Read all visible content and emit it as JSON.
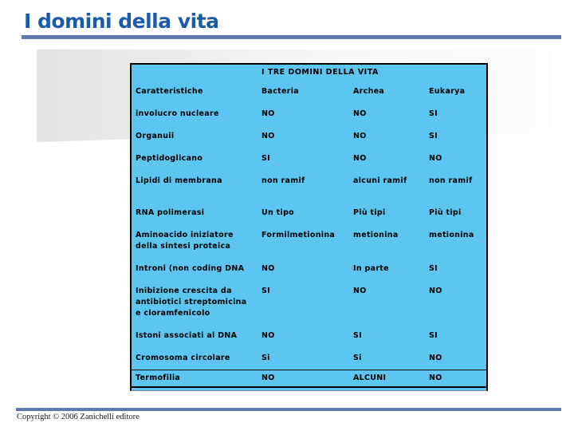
{
  "slide": {
    "title": "I domini della vita",
    "footer": "Copyright © 2006 Zanichelli editore"
  },
  "table": {
    "title": "I TRE DOMINI DELLA VITA",
    "columns": [
      "Caratteristiche",
      "Bacteria",
      "Archea",
      "Eukarya"
    ],
    "rows": [
      {
        "label": [
          "involucro nucleare"
        ],
        "values": [
          "NO",
          "NO",
          "SI"
        ]
      },
      {
        "label": [
          "Organuii"
        ],
        "values": [
          "NO",
          "NO",
          "SI"
        ]
      },
      {
        "label": [
          "Peptidoglicano"
        ],
        "values": [
          "SI",
          "NO",
          "NO"
        ]
      },
      {
        "label": [
          "Lipidi di membrana"
        ],
        "values": [
          "non ramif",
          "alcuni ramif",
          "non ramif"
        ]
      },
      {
        "label": [
          "RNA polimerasi"
        ],
        "values": [
          "Un tipo",
          "Più tipi",
          "Più tipi"
        ]
      },
      {
        "label": [
          "Aminoacido iniziatore",
          "della sintesi proteica"
        ],
        "values": [
          "Formilmetionina",
          "metionina",
          "metionina"
        ]
      },
      {
        "label": [
          "Introni (non coding DNA"
        ],
        "values": [
          "NO",
          "In parte",
          "SI"
        ]
      },
      {
        "label": [
          "Inibizione crescita da",
          "antibiotici streptomicina",
          "e cloramfenicolo"
        ],
        "values": [
          "SI",
          "NO",
          "NO"
        ]
      },
      {
        "label": [
          "Istoni associati al DNA"
        ],
        "values": [
          "NO",
          "SI",
          "SI"
        ]
      },
      {
        "label": [
          "Cromosoma circolare"
        ],
        "values": [
          "Si",
          "Si",
          "NO"
        ]
      },
      {
        "label": [
          "Termofilia"
        ],
        "values": [
          "NO",
          "ALCUNI",
          "NO"
        ],
        "top_border": true
      }
    ]
  },
  "colors": {
    "table_bg": "#5cc6f0",
    "accent_bar": "#5f78ad",
    "title_text": "#1b5ca8",
    "table_border": "#000000"
  }
}
